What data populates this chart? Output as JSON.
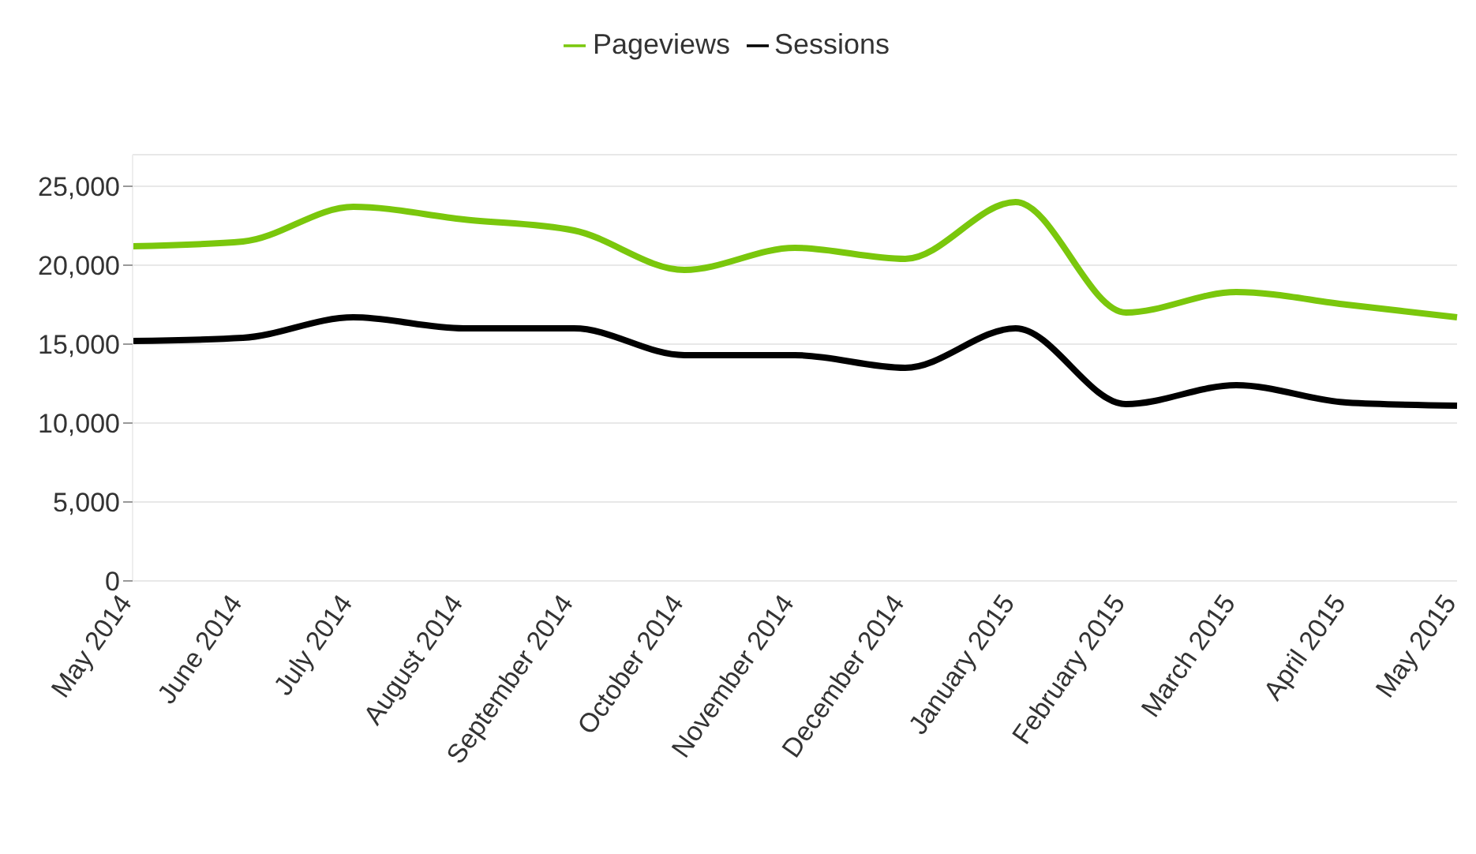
{
  "chart_data": {
    "type": "line",
    "categories": [
      "May 2014",
      "June 2014",
      "July 2014",
      "August 2014",
      "September 2014",
      "October 2014",
      "November 2014",
      "December 2014",
      "January 2015",
      "February 2015",
      "March 2015",
      "April 2015",
      "May 2015"
    ],
    "series": [
      {
        "name": "Pageviews",
        "color": "#7ac70c",
        "values": [
          21200,
          21500,
          23700,
          22900,
          22200,
          19700,
          21100,
          20400,
          24000,
          17000,
          18300,
          17500,
          16700
        ]
      },
      {
        "name": "Sessions",
        "color": "#000000",
        "values": [
          15200,
          15400,
          16700,
          16000,
          16000,
          14300,
          14300,
          13500,
          16000,
          11200,
          12400,
          11300,
          11100
        ]
      }
    ],
    "ylim": [
      0,
      27000
    ],
    "yticks": [
      0,
      {
        "value": 5000,
        "label": "5,000"
      },
      {
        "value": 10000,
        "label": "10,000"
      },
      {
        "value": 15000,
        "label": "15,000"
      },
      {
        "value": 20000,
        "label": "20,000"
      },
      {
        "value": 25000,
        "label": "25,000"
      }
    ],
    "grid": "y",
    "legend": "top",
    "marker": "none",
    "line_style": "solid"
  }
}
